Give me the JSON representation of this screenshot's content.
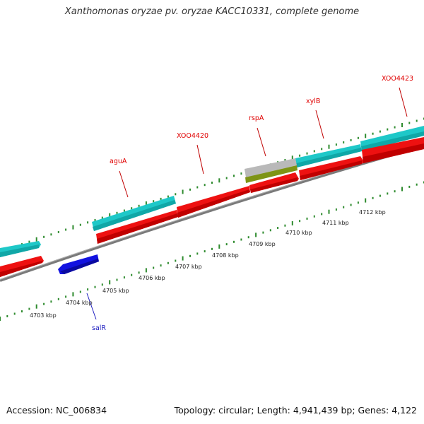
{
  "title": "Xanthomonas oryzae pv. oryzae KACC10331, complete genome",
  "footer": {
    "accession": "Accession: NC_006834",
    "summary": "Topology: circular; Length: 4,941,439 bp; Genes: 4,122"
  },
  "colors": {
    "forward_cds": "#1ec8c8",
    "reverse_cds": "#ee1111",
    "salR": "#1212e0",
    "rspA_top": "#b9b9b9",
    "rspA_bottom": "#7e9415",
    "backbone": "#808080",
    "tick": "#2e8b2e",
    "forward_label": "#e00000",
    "reverse_label": "#2020c0"
  },
  "scale_labels": [
    "4703 kbp",
    "4704 kbp",
    "4705 kbp",
    "4706 kbp",
    "4707 kbp",
    "4708 kbp",
    "4709 kbp",
    "4710 kbp",
    "4711 kbp",
    "4712 kbp"
  ],
  "gene_labels": {
    "aguA": "aguA",
    "XOO4420": "XOO4420",
    "rspA": "rspA",
    "xylB": "xylB",
    "XOO4423": "XOO4423",
    "salR": "salR"
  },
  "icons": [
    "forward-arrow",
    "reverse-arrow"
  ]
}
